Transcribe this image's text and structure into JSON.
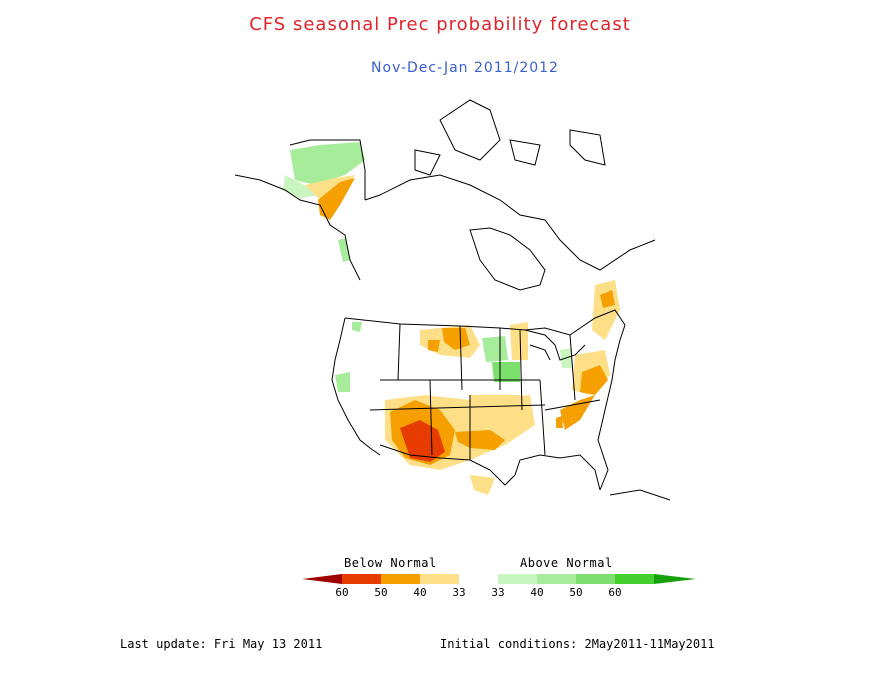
{
  "title": "CFS seasonal Prec probability forecast",
  "subtitle": "Nov-Dec-Jan 2011/2012",
  "colors": {
    "title": "#e0242a",
    "subtitle": "#3a5fd0",
    "below_60": "#a00000",
    "below_50": "#e63c00",
    "below_40": "#f5a000",
    "below_33": "#fddf88",
    "normal": "#ffffff",
    "above_33": "#c8f5c0",
    "above_40": "#a6ec9a",
    "above_50": "#7ddf6e",
    "above_60": "#45d030",
    "above_max": "#16a00a"
  },
  "legend": {
    "below_label": "Below Normal",
    "above_label": "Above Normal",
    "ticks": [
      "60",
      "50",
      "40",
      "33",
      "33",
      "40",
      "50",
      "60"
    ]
  },
  "footer": {
    "last_update": "Last update: Fri May 13 2011",
    "initial_conditions": "Initial conditions: 2May2011-11May2011"
  }
}
